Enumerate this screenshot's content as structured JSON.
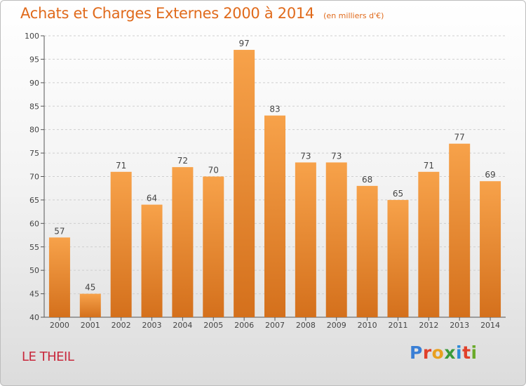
{
  "chart_data": {
    "type": "bar",
    "title": "Achats et Charges Externes 2000 à 2014",
    "subtitle": "(en milliers d'€)",
    "categories": [
      "2000",
      "2001",
      "2002",
      "2003",
      "2004",
      "2005",
      "2006",
      "2007",
      "2008",
      "2009",
      "2010",
      "2011",
      "2012",
      "2013",
      "2014"
    ],
    "values": [
      57,
      45,
      71,
      64,
      72,
      70,
      97,
      83,
      73,
      73,
      68,
      65,
      71,
      77,
      69
    ],
    "ylim": [
      40,
      100
    ],
    "yticks": [
      40,
      45,
      50,
      55,
      60,
      65,
      70,
      75,
      80,
      85,
      90,
      95,
      100
    ],
    "grid": true,
    "bar_color": "#f08a2c"
  },
  "footer": {
    "place": "LE THEIL",
    "logo": "Proxiti",
    "logo_colors": [
      "#3a7fd5",
      "#e0402a",
      "#e8a020",
      "#3a9a3a",
      "#2c8ad8",
      "#e0402a",
      "#6aaa2a"
    ]
  }
}
